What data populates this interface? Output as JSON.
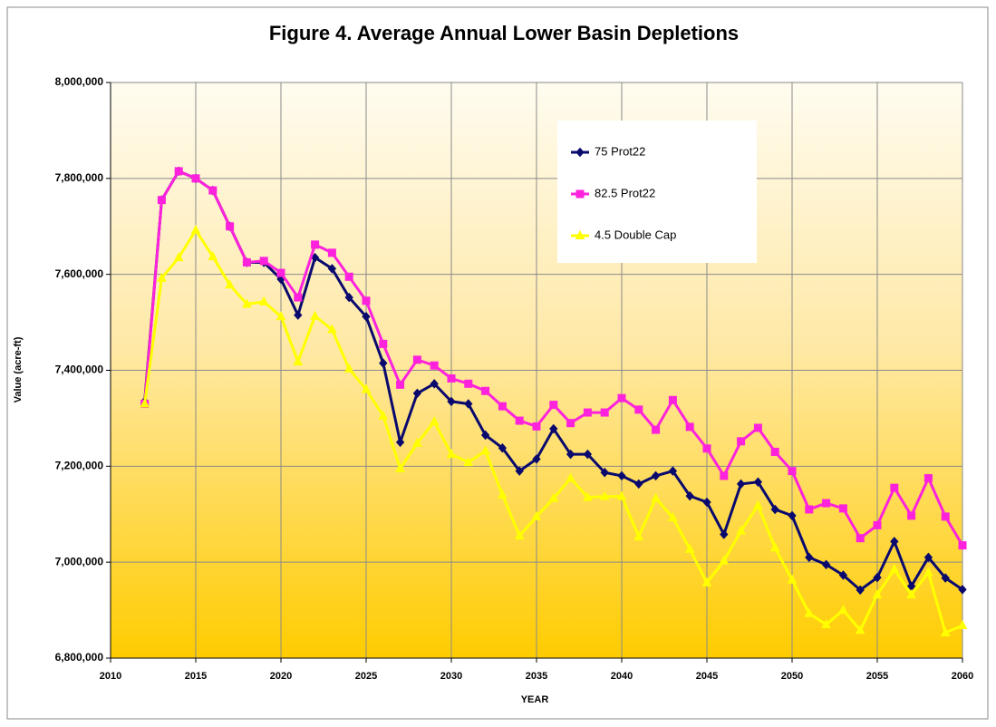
{
  "chart_data": {
    "type": "line",
    "title": "Figure 4. Average Annual Lower Basin Depletions",
    "x_label": "YEAR",
    "y_label": "Value (acre-ft)",
    "x": [
      2012,
      2013,
      2014,
      2015,
      2016,
      2017,
      2018,
      2019,
      2020,
      2021,
      2022,
      2023,
      2024,
      2025,
      2026,
      2027,
      2028,
      2029,
      2030,
      2031,
      2032,
      2033,
      2034,
      2035,
      2036,
      2037,
      2038,
      2039,
      2040,
      2041,
      2042,
      2043,
      2044,
      2045,
      2046,
      2047,
      2048,
      2049,
      2050,
      2051,
      2052,
      2053,
      2054,
      2055,
      2056,
      2057,
      2058,
      2059,
      2060
    ],
    "series": [
      {
        "name": "75 Prot22",
        "color": "#0a0a6e",
        "marker": "diamond",
        "values": [
          7335000,
          7755000,
          7815000,
          7800000,
          7775000,
          7700000,
          7625000,
          7625000,
          7590000,
          7515000,
          7635000,
          7612000,
          7552000,
          7512000,
          7415000,
          7250000,
          7352000,
          7372000,
          7335000,
          7330000,
          7265000,
          7238000,
          7190000,
          7215000,
          7278000,
          7225000,
          7225000,
          7187000,
          7180000,
          7163000,
          7180000,
          7190000,
          7138000,
          7125000,
          7058000,
          7163000,
          7167000,
          7110000,
          7097000,
          7010000,
          6995000,
          6973000,
          6942000,
          6968000,
          7043000,
          6950000,
          7010000,
          6967000,
          6943000
        ]
      },
      {
        "name": "82.5 Prot22",
        "color": "#ff22dd",
        "marker": "square",
        "values": [
          7330000,
          7755000,
          7815000,
          7800000,
          7775000,
          7700000,
          7625000,
          7628000,
          7603000,
          7552000,
          7662000,
          7645000,
          7595000,
          7545000,
          7455000,
          7370000,
          7422000,
          7410000,
          7383000,
          7372000,
          7357000,
          7325000,
          7295000,
          7283000,
          7328000,
          7290000,
          7312000,
          7312000,
          7342000,
          7318000,
          7276000,
          7338000,
          7282000,
          7237000,
          7180000,
          7252000,
          7280000,
          7230000,
          7190000,
          7110000,
          7123000,
          7112000,
          7050000,
          7077000,
          7155000,
          7097000,
          7175000,
          7095000,
          7035000
        ]
      },
      {
        "name": "4.5 Double Cap",
        "color": "#ffff00",
        "marker": "triangle",
        "values": [
          7330000,
          7592000,
          7635000,
          7692000,
          7637000,
          7578000,
          7538000,
          7543000,
          7512000,
          7418000,
          7513000,
          7485000,
          7403000,
          7360000,
          7305000,
          7195000,
          7248000,
          7293000,
          7225000,
          7208000,
          7232000,
          7140000,
          7055000,
          7095000,
          7133000,
          7175000,
          7135000,
          7137000,
          7137000,
          7053000,
          7133000,
          7093000,
          7027000,
          6957000,
          7003000,
          7065000,
          7118000,
          7030000,
          6963000,
          6893000,
          6870000,
          6900000,
          6858000,
          6932000,
          6985000,
          6932000,
          6978000,
          6853000,
          6868000
        ]
      }
    ],
    "xlim": [
      2010,
      2060
    ],
    "xticks": [
      2010,
      2015,
      2020,
      2025,
      2030,
      2035,
      2040,
      2045,
      2050,
      2055,
      2060
    ],
    "ylim": [
      6800000,
      8000000
    ],
    "yticks": [
      {
        "value": 6800000,
        "label": "6,800,000"
      },
      {
        "value": 7000000,
        "label": "7,000,000"
      },
      {
        "value": 7200000,
        "label": "7,200,000"
      },
      {
        "value": 7400000,
        "label": "7,400,000"
      },
      {
        "value": 7600000,
        "label": "7,600,000"
      },
      {
        "value": 7800000,
        "label": "7,800,000"
      },
      {
        "value": 8000000,
        "label": "8,000,000"
      }
    ],
    "grid": true,
    "legend": "upper right"
  }
}
